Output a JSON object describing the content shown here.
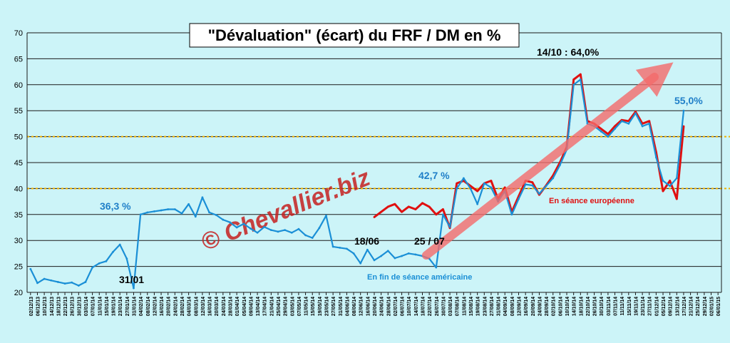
{
  "chart_data": {
    "type": "line",
    "title": "\"Dévaluation\" (écart) du FRF / DM en %",
    "ylim": [
      20,
      70
    ],
    "yticks": [
      20,
      25,
      30,
      35,
      40,
      45,
      50,
      55,
      60,
      65,
      70
    ],
    "reference_lines": [
      40,
      50
    ],
    "x": [
      "02/12/13",
      "06/12/13",
      "10/12/13",
      "14/12/13",
      "18/12/13",
      "22/12/13",
      "26/12/13",
      "30/12/13",
      "03/01/14",
      "07/01/14",
      "11/01/14",
      "15/01/14",
      "19/01/14",
      "23/01/14",
      "27/01/14",
      "31/01/14",
      "04/02/14",
      "08/02/14",
      "12/02/14",
      "16/02/14",
      "20/02/14",
      "24/02/14",
      "28/02/14",
      "04/03/14",
      "08/03/14",
      "12/03/14",
      "16/03/14",
      "20/03/14",
      "24/03/14",
      "28/03/14",
      "01/04/14",
      "05/04/14",
      "09/04/14",
      "13/04/14",
      "17/04/14",
      "21/04/14",
      "25/04/14",
      "29/04/14",
      "03/05/14",
      "07/05/14",
      "11/05/14",
      "15/05/14",
      "19/05/14",
      "23/05/14",
      "27/05/14",
      "31/05/14",
      "04/06/14",
      "08/06/14",
      "12/06/14",
      "16/06/14",
      "20/06/14",
      "24/06/14",
      "28/06/14",
      "02/07/14",
      "06/07/14",
      "10/07/14",
      "14/07/14",
      "18/07/14",
      "22/07/14",
      "26/07/14",
      "30/07/14",
      "03/08/14",
      "07/08/14",
      "11/08/14",
      "15/08/14",
      "19/08/14",
      "23/08/14",
      "27/08/14",
      "31/08/14",
      "04/09/14",
      "08/09/14",
      "12/09/14",
      "16/09/14",
      "20/09/14",
      "24/09/14",
      "28/09/14",
      "02/10/14",
      "06/10/14",
      "10/10/14",
      "14/10/14",
      "18/10/14",
      "22/10/14",
      "26/10/14",
      "30/10/14",
      "03/11/14",
      "07/11/14",
      "11/11/14",
      "15/11/14",
      "19/11/14",
      "23/11/14",
      "27/11/14",
      "01/12/14",
      "05/12/14",
      "09/12/14",
      "13/12/14",
      "17/12/14",
      "21/12/14",
      "25/12/14",
      "29/12/14",
      "02/01/15",
      "06/01/15"
    ],
    "series": [
      {
        "name": "En fin de séance américaine",
        "color": "#1a8fd6",
        "values": [
          24.5,
          21.8,
          22.6,
          22.3,
          22.0,
          21.7,
          21.9,
          21.3,
          22.0,
          24.8,
          25.6,
          26.0,
          27.8,
          29.2,
          26.5,
          20.8,
          35.0,
          35.4,
          35.6,
          35.8,
          36.0,
          36.0,
          35.2,
          37.0,
          34.6,
          38.3,
          35.4,
          34.9,
          34.0,
          33.5,
          32.5,
          33.2,
          32.3,
          31.5,
          32.6,
          32.0,
          31.7,
          32.0,
          31.5,
          32.2,
          31.0,
          30.5,
          32.4,
          34.8,
          28.8,
          28.6,
          28.4,
          27.5,
          25.6,
          28.2,
          26.2,
          27.0,
          28.0,
          26.6,
          27.0,
          27.5,
          27.3,
          27.0,
          26.5,
          24.8,
          35.0,
          32.6,
          40.0,
          42.0,
          40.0,
          37.0,
          41.0,
          40.2,
          37.5,
          39.5,
          35.0,
          38.0,
          40.8,
          40.6,
          39.0,
          40.5,
          42.0,
          44.5,
          47.5,
          60.0,
          61.0,
          52.5,
          52.0,
          51.0,
          50.0,
          51.5,
          53.0,
          52.5,
          54.5,
          52.0,
          52.5,
          46.0,
          41.5,
          40.5,
          42.0,
          55.0,
          null,
          null,
          null,
          null,
          null
        ]
      },
      {
        "name": "En séance européenne",
        "color": "#e01010",
        "values": [
          null,
          null,
          null,
          null,
          null,
          null,
          null,
          null,
          null,
          null,
          null,
          null,
          null,
          null,
          null,
          null,
          null,
          null,
          null,
          null,
          null,
          null,
          null,
          null,
          null,
          null,
          null,
          null,
          null,
          null,
          null,
          null,
          null,
          null,
          null,
          null,
          null,
          null,
          null,
          null,
          null,
          null,
          null,
          null,
          null,
          null,
          null,
          null,
          null,
          null,
          34.5,
          35.5,
          36.5,
          37.0,
          35.5,
          36.5,
          36.0,
          37.2,
          36.5,
          35.0,
          36.0,
          32.4,
          41.0,
          41.5,
          40.5,
          39.5,
          41.0,
          41.5,
          38.0,
          40.2,
          35.5,
          38.5,
          41.5,
          41.2,
          38.8,
          40.6,
          42.5,
          45.0,
          48.0,
          61.0,
          62.0,
          53.0,
          52.5,
          51.5,
          50.5,
          52.0,
          53.2,
          53.0,
          54.8,
          52.5,
          53.0,
          47.0,
          39.5,
          41.5,
          38.0,
          52.0,
          null,
          null,
          null,
          null,
          null
        ]
      }
    ],
    "annotations": [
      {
        "text": "36,3 %",
        "color": "#1f7fc8"
      },
      {
        "text": "31/01",
        "color": "#000000"
      },
      {
        "text": "18/06",
        "color": "#000000"
      },
      {
        "text": "25 / 07",
        "color": "#000000"
      },
      {
        "text": "42,7 %",
        "color": "#1f7fc8"
      },
      {
        "text": "14/10 : 64,0%",
        "color": "#000000"
      },
      {
        "text": "55,0%",
        "color": "#1f7fc8"
      },
      {
        "text": "En séance européenne",
        "color": "#e01010"
      },
      {
        "text": "En fin de séance américaine",
        "color": "#1a8fd6"
      }
    ],
    "watermark": "© Chevallier.biz",
    "colors": {
      "background": "#ccf4f8",
      "gridline": "#1a1a1a",
      "reference_line": "#f0b000",
      "trend_arrow": "#f46a6a"
    }
  }
}
